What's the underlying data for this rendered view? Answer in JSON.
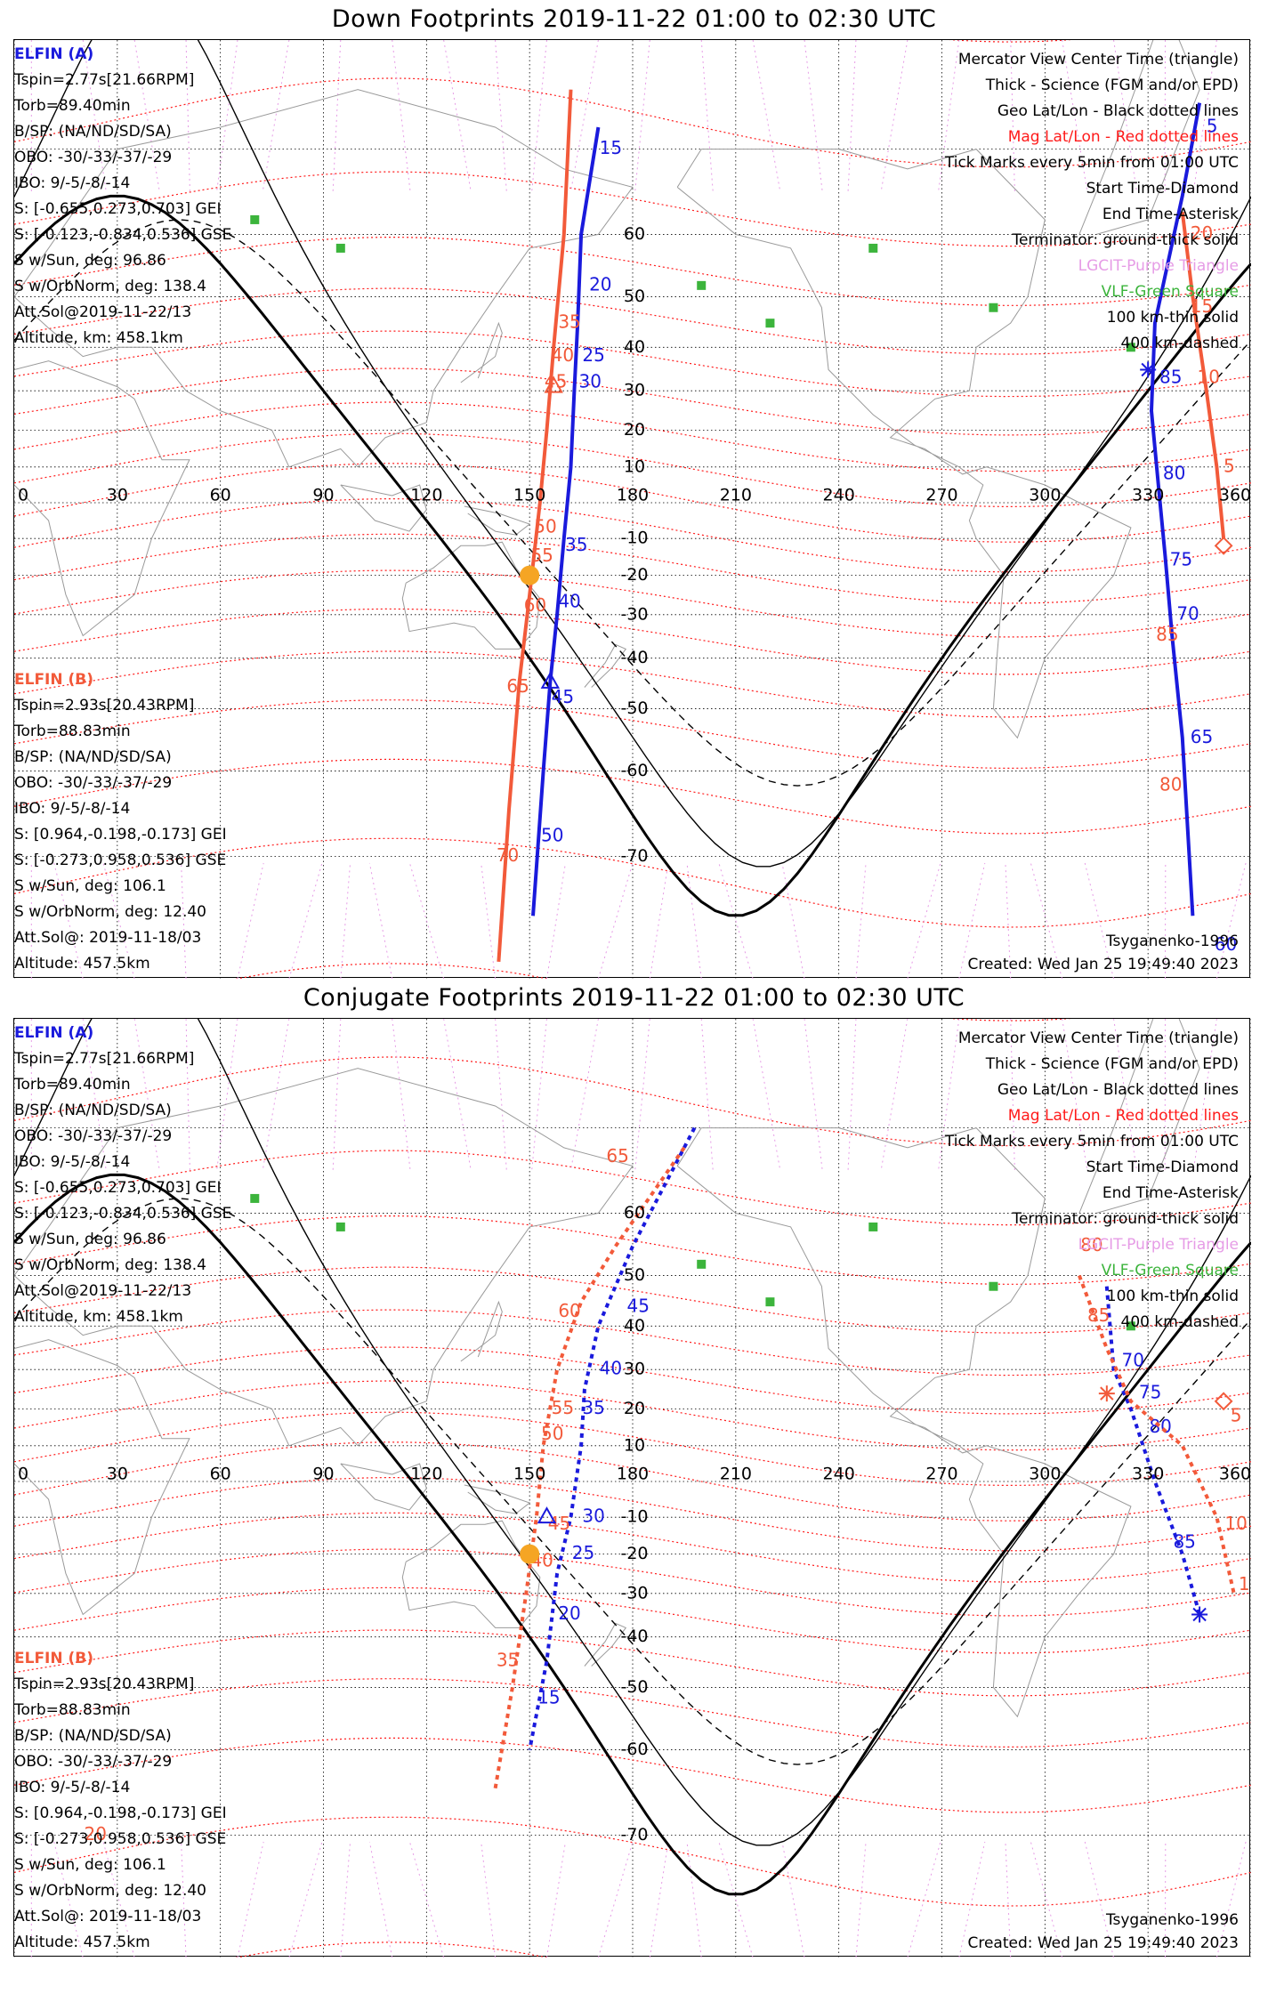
{
  "panels": [
    {
      "title": "Down Footprints 2019-11-22 01:00 to 02:30 UTC",
      "elfin_a": {
        "name": "ELFIN (A)",
        "lines": [
          "Tspin=2.77s[21.66RPM]",
          "Torb=89.40min",
          "B/SP: (NA/ND/SD/SA)",
          "OBO: -30/-33/-37/-29",
          "IBO: 9/-5/-8/-14",
          "S: [-0.655,0.273,0.703] GEI",
          "S: [-0.123,-0.834,0.536] GSE",
          "S w/Sun, deg: 96.86",
          "S w/OrbNorm, deg: 138.4",
          "Att.Sol@2019-11-22/13",
          "Altitude, km: 458.1km"
        ]
      },
      "elfin_b": {
        "name": "ELFIN (B)",
        "lines": [
          "Tspin=2.93s[20.43RPM]",
          "Torb=88.83min",
          "B/SP: (NA/ND/SD/SA)",
          "OBO: -30/-33/-37/-29",
          "IBO: 9/-5/-8/-14",
          "S: [0.964,-0.198,-0.173] GEI",
          "S: [-0.273,0.958,0.536] GSE",
          "S w/Sun, deg: 106.1",
          "S w/OrbNorm, deg: 12.40",
          "Att.Sol@: 2019-11-18/03",
          "Altitude: 457.5km"
        ]
      },
      "legend": [
        "Mercator View Center Time (triangle)",
        "Thick - Science (FGM and/or EPD)",
        "Geo Lat/Lon - Black dotted lines",
        "Mag Lat/Lon - Red dotted lines",
        "Tick Marks every 5min from 01:00 UTC",
        "Start Time-Diamond",
        "End Time-Asterisk",
        "Terminator: ground-thick solid",
        "LGCIT-Purple Triangle",
        "VLF-Green Square",
        "100 km-thin solid",
        "400 km-dashed"
      ],
      "model": "Tsyganenko-1996",
      "created": "Created: Wed Jan 25 19:49:40 2023"
    },
    {
      "title": "Conjugate Footprints 2019-11-22 01:00 to 02:30 UTC",
      "elfin_a": {
        "name": "ELFIN (A)",
        "lines": [
          "Tspin=2.77s[21.66RPM]",
          "Torb=89.40min",
          "B/SP: (NA/ND/SD/SA)",
          "OBO: -30/-33/-37/-29",
          "IBO: 9/-5/-8/-14",
          "S: [-0.655,0.273,0.703] GEI",
          "S: [-0.123,-0.834,0.536] GSE",
          "S w/Sun, deg: 96.86",
          "S w/OrbNorm, deg: 138.4",
          "Att.Sol@2019-11-22/13",
          "Altitude, km: 458.1km"
        ]
      },
      "elfin_b": {
        "name": "ELFIN (B)",
        "lines": [
          "Tspin=2.93s[20.43RPM]",
          "Torb=88.83min",
          "B/SP: (NA/ND/SD/SA)",
          "OBO: -30/-33/-37/-29",
          "IBO: 9/-5/-8/-14",
          "S: [0.964,-0.198,-0.173] GEI",
          "S: [-0.273,0.958,0.536] GSE",
          "S w/Sun, deg: 106.1",
          "S w/OrbNorm, deg: 12.40",
          "Att.Sol@: 2019-11-18/03",
          "Altitude: 457.5km"
        ]
      },
      "legend": [
        "Mercator View Center Time (triangle)",
        "Thick - Science (FGM and/or EPD)",
        "Geo Lat/Lon - Black dotted lines",
        "Mag Lat/Lon - Red dotted lines",
        "Tick Marks every 5min from 01:00 UTC",
        "Start Time-Diamond",
        "End Time-Asterisk",
        "Terminator: ground-thick solid",
        "LGCIT-Purple Triangle",
        "VLF-Green Square",
        "100 km-thin solid",
        "400 km-dashed"
      ],
      "model": "Tsyganenko-1996",
      "created": "Created: Wed Jan 25 19:49:40 2023"
    }
  ],
  "chart_data": [
    {
      "type": "map",
      "title": "Down Footprints 2019-11-22 01:00 to 02:30 UTC",
      "projection": "mercator",
      "lon_ticks": [
        "0",
        "30",
        "60",
        "90",
        "120",
        "150",
        "180",
        "210",
        "240",
        "270",
        "300",
        "330",
        "360"
      ],
      "lat_ticks": [
        "60",
        "50",
        "40",
        "30",
        "20",
        "10",
        "-10",
        "-20",
        "-30",
        "-40",
        "-50",
        "-60",
        "-70"
      ],
      "xlim": [
        0,
        360
      ],
      "ylim": [
        -80,
        80
      ],
      "grid": true,
      "colors": {
        "elfin_a": "#1a1adc",
        "elfin_b": "#f25a3a",
        "mag_grid": "#ff1a1a",
        "terminator": "#000000",
        "lgcit": "#e69ce6",
        "vlf": "#3cb43c"
      },
      "series": [
        {
          "name": "ELFIN (A)",
          "points": [
            [
              170,
              72
            ],
            [
              165,
              60
            ],
            [
              164,
              45
            ],
            [
              163,
              30
            ],
            [
              162,
              10
            ],
            [
              160,
              -10
            ],
            [
              158,
              -30
            ],
            [
              156,
              -45
            ],
            [
              154,
              -60
            ],
            [
              151,
              -75
            ]
          ],
          "tick_labels": [
            [
              170,
              70,
              "15"
            ],
            [
              167,
              52,
              "20"
            ],
            [
              165,
              38,
              "25"
            ],
            [
              164,
              32,
              "30"
            ],
            [
              160,
              -12,
              "35"
            ],
            [
              158,
              -27,
              "40"
            ],
            [
              156,
              -48,
              "45"
            ],
            [
              153,
              -68,
              "50"
            ]
          ]
        },
        {
          "name": "ELFIN (A) second pass",
          "points": [
            [
              345,
              74
            ],
            [
              340,
              65
            ],
            [
              332,
              45
            ],
            [
              331,
              25
            ],
            [
              333,
              5
            ],
            [
              335,
              -15
            ],
            [
              337,
              -35
            ],
            [
              340,
              -55
            ],
            [
              343,
              -75
            ]
          ],
          "tick_labels": [
            [
              345,
              72,
              "5"
            ],
            [
              333,
              33,
              "85"
            ],
            [
              334,
              8,
              "80"
            ],
            [
              336,
              -16,
              "75"
            ],
            [
              338,
              -30,
              "70"
            ],
            [
              342,
              -55,
              "65"
            ],
            [
              349,
              -77,
              "60"
            ]
          ]
        },
        {
          "name": "ELFIN (B)",
          "points": [
            [
              162,
              75
            ],
            [
              160,
              60
            ],
            [
              157,
              40
            ],
            [
              155,
              20
            ],
            [
              153,
              0
            ],
            [
              150,
              -25
            ],
            [
              147,
              -45
            ],
            [
              144,
              -65
            ],
            [
              141,
              -78
            ]
          ],
          "tick_labels": [
            [
              158,
              45,
              "35"
            ],
            [
              156,
              38,
              "40"
            ],
            [
              154,
              32,
              "45"
            ],
            [
              151,
              -7,
              "50"
            ],
            [
              150,
              -15,
              "55"
            ],
            [
              148,
              -28,
              "60"
            ],
            [
              143,
              -46,
              "65"
            ],
            [
              140,
              -70,
              "70"
            ]
          ]
        },
        {
          "name": "ELFIN (B) second pass",
          "points": [
            [
              340,
              63
            ],
            [
              343,
              50
            ],
            [
              347,
              30
            ],
            [
              350,
              10
            ],
            [
              352,
              -10
            ]
          ],
          "tick_labels": [
            [
              342,
              60,
              "20"
            ],
            [
              342,
              48,
              "15"
            ],
            [
              344,
              33,
              "10"
            ],
            [
              350,
              10,
              "5"
            ],
            [
              332,
              -35,
              "85"
            ],
            [
              333,
              -62,
              "80"
            ]
          ]
        }
      ],
      "markers": {
        "sun": [
          150,
          -20
        ],
        "view_center_a": [
          156,
          -45
        ],
        "view_center_b": [
          157,
          31
        ],
        "start_b": [
          352,
          -12
        ],
        "end_a": [
          330,
          35
        ]
      }
    },
    {
      "type": "map",
      "title": "Conjugate Footprints 2019-11-22 01:00 to 02:30 UTC",
      "projection": "mercator",
      "lon_ticks": [
        "0",
        "30",
        "60",
        "90",
        "120",
        "150",
        "180",
        "210",
        "240",
        "270",
        "300",
        "330",
        "360"
      ],
      "lat_ticks": [
        "60",
        "50",
        "40",
        "30",
        "20",
        "10",
        "-10",
        "-20",
        "-30",
        "-40",
        "-50",
        "-60",
        "-70"
      ],
      "xlim": [
        0,
        360
      ],
      "ylim": [
        -80,
        80
      ],
      "grid": true,
      "series": [
        {
          "name": "ELFIN (A)",
          "points": [
            [
              198,
              70
            ],
            [
              180,
              55
            ],
            [
              170,
              40
            ],
            [
              166,
              25
            ],
            [
              165,
              10
            ],
            [
              162,
              -10
            ],
            [
              158,
              -25
            ],
            [
              155,
              -45
            ],
            [
              150,
              -60
            ]
          ],
          "tick_labels": [
            [
              178,
              44,
              "45"
            ],
            [
              170,
              30,
              "40"
            ],
            [
              165,
              20,
              "35"
            ],
            [
              165,
              -10,
              "30"
            ],
            [
              162,
              -20,
              "25"
            ],
            [
              158,
              -35,
              "20"
            ],
            [
              152,
              -52,
              "15"
            ]
          ]
        },
        {
          "name": "ELFIN (A) second pass",
          "points": [
            [
              318,
              48
            ],
            [
              320,
              30
            ],
            [
              325,
              20
            ],
            [
              332,
              0
            ],
            [
              340,
              -20
            ],
            [
              345,
              -35
            ]
          ],
          "tick_labels": [
            [
              322,
              32,
              "70"
            ],
            [
              327,
              24,
              "75"
            ],
            [
              330,
              15,
              "80"
            ],
            [
              337,
              -17,
              "85"
            ]
          ]
        },
        {
          "name": "ELFIN (B)",
          "points": [
            [
              195,
              68
            ],
            [
              175,
              55
            ],
            [
              165,
              45
            ],
            [
              158,
              30
            ],
            [
              154,
              10
            ],
            [
              152,
              -10
            ],
            [
              149,
              -30
            ],
            [
              145,
              -50
            ],
            [
              140,
              -65
            ]
          ],
          "tick_labels": [
            [
              172,
              67,
              "65"
            ],
            [
              158,
              43,
              "60"
            ],
            [
              156,
              20,
              "55"
            ],
            [
              153,
              13,
              "50"
            ],
            [
              155,
              -12,
              "45"
            ],
            [
              150,
              -22,
              "40"
            ],
            [
              140,
              -45,
              "35"
            ],
            [
              20,
              -70,
              "20"
            ]
          ]
        },
        {
          "name": "ELFIN (B) second pass",
          "points": [
            [
              310,
              50
            ],
            [
              318,
              35
            ],
            [
              325,
              22
            ],
            [
              340,
              10
            ],
            [
              350,
              -10
            ],
            [
              355,
              -30
            ]
          ],
          "tick_labels": [
            [
              310,
              55,
              "80"
            ],
            [
              312,
              42,
              "85"
            ],
            [
              352,
              18,
              "5"
            ],
            [
              352,
              -12,
              "10"
            ],
            [
              356,
              -28,
              "15"
            ]
          ]
        }
      ],
      "markers": {
        "sun": [
          150,
          -20
        ],
        "view_center_a": [
          155,
          -10
        ],
        "start_b": [
          352,
          22
        ],
        "end_a": [
          345,
          -35
        ],
        "end_b": [
          318,
          24
        ]
      }
    }
  ]
}
